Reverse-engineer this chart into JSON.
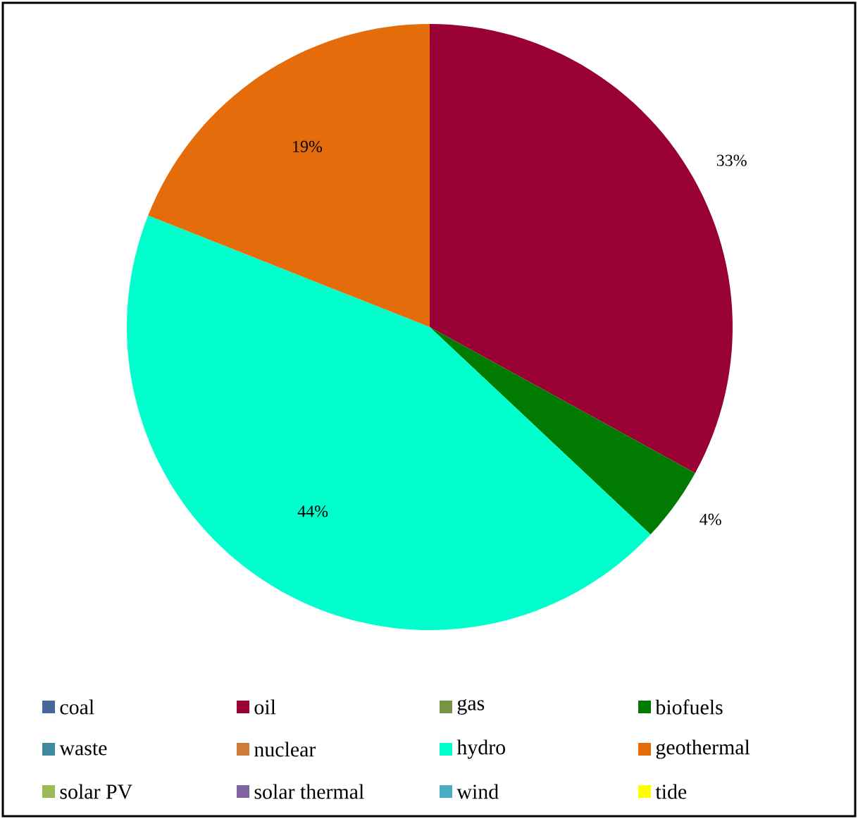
{
  "chart_data": {
    "type": "pie",
    "categories": [
      "coal",
      "oil",
      "gas",
      "biofuels",
      "waste",
      "nuclear",
      "hydro",
      "geothermal",
      "solar PV",
      "solar thermal",
      "wind",
      "tide"
    ],
    "values": [
      0,
      33,
      0,
      4,
      0,
      0,
      44,
      19,
      0,
      0,
      0,
      0
    ],
    "value_labels": [
      null,
      "33%",
      null,
      "4%",
      null,
      null,
      "44%",
      "19%",
      null,
      null,
      null,
      null
    ],
    "colors": [
      "#44689c",
      "#990033",
      "#779444",
      "#007a00",
      "#3f8a9e",
      "#d07a3a",
      "#00ffcc",
      "#e46c0a",
      "#9bbb59",
      "#8064a2",
      "#4bacc6",
      "#ffff00"
    ],
    "legend": "bottom"
  }
}
